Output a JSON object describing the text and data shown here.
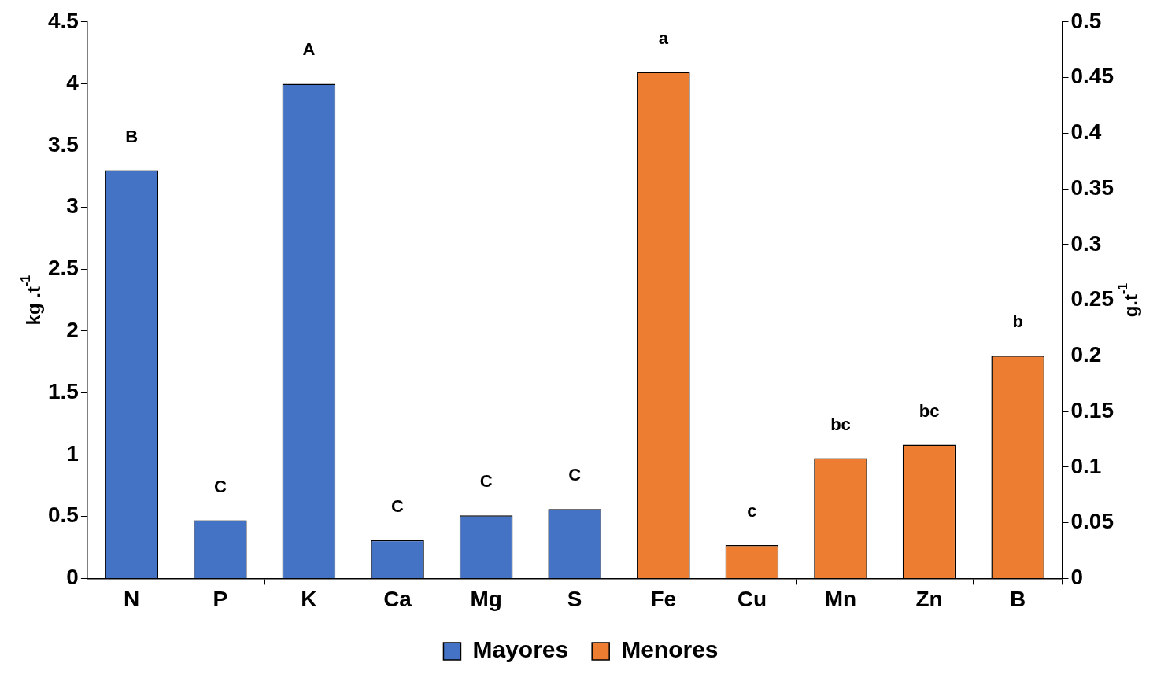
{
  "chart_data": {
    "type": "bar",
    "ylabel": "kg .t$^{-1}$",
    "y2label": "g.t$^{-1}$",
    "categories": [
      "N",
      "P",
      "K",
      "Ca",
      "Mg",
      "S",
      "Fe",
      "Cu",
      "Mn",
      "Zn",
      "B"
    ],
    "series": [
      {
        "name": "Mayores",
        "color": "#4472c4",
        "values": [
          3.3,
          0.47,
          4.0,
          0.31,
          0.51,
          0.56,
          null,
          null,
          null,
          null,
          null
        ]
      },
      {
        "name": "Menores",
        "color": "#ed7d31",
        "axis": "y2",
        "values": [
          null,
          null,
          null,
          null,
          null,
          null,
          0.455,
          0.03,
          0.108,
          0.12,
          0.2
        ]
      }
    ],
    "ylim": [
      0,
      4.5
    ],
    "yticks": [
      0,
      0.5,
      1,
      1.5,
      2,
      2.5,
      3,
      3.5,
      4,
      4.5
    ],
    "y2lim": [
      0,
      0.5
    ],
    "y2ticks": [
      0,
      0.05,
      0.1,
      0.15,
      0.2,
      0.25,
      0.3,
      0.35,
      0.4,
      0.45,
      0.5
    ],
    "annotations": [
      "B",
      "C",
      "A",
      "C",
      "C",
      "C",
      "a",
      "c",
      "bc",
      "bc",
      "b"
    ],
    "legend": "bottom",
    "grid": false
  }
}
